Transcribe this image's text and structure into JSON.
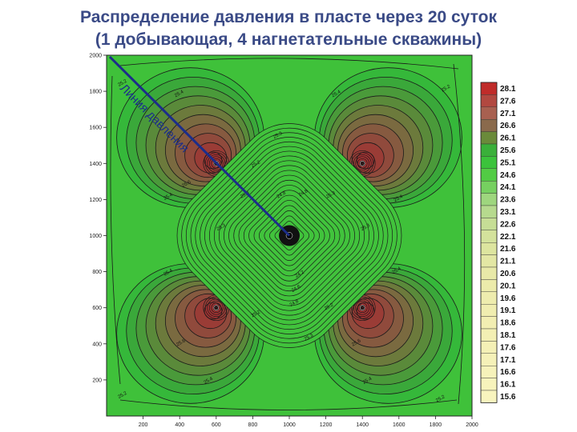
{
  "title_line1": "Распределение давления в пласте через 20 суток",
  "title_line2": "(1 добывающая, 4 нагнетательные скважины)",
  "annotation": "Линия давления",
  "colors": {
    "title": "#3a4a86",
    "field_green": "#3fc13a",
    "contour": "#1a1a1a",
    "line": "#1c2d8a"
  },
  "chart_data": {
    "type": "heatmap",
    "title": "",
    "xlabel": "",
    "ylabel": "",
    "xlim": [
      0,
      2000
    ],
    "ylim": [
      0,
      2000
    ],
    "x_ticks": [
      "200",
      "400",
      "600",
      "800",
      "1000",
      "1200",
      "1400",
      "1600",
      "1800",
      "2000"
    ],
    "y_ticks": [
      "200",
      "400",
      "600",
      "800",
      "1000",
      "1200",
      "1400",
      "1600",
      "1800",
      "2000"
    ],
    "wells": [
      {
        "type": "production",
        "x": 1000,
        "y": 1000
      },
      {
        "type": "injection",
        "x": 600,
        "y": 1400
      },
      {
        "type": "injection",
        "x": 1400,
        "y": 1400
      },
      {
        "type": "injection",
        "x": 600,
        "y": 600
      },
      {
        "type": "injection",
        "x": 1400,
        "y": 600
      }
    ],
    "pressure_line": {
      "from": [
        0,
        2000
      ],
      "to": [
        1000,
        1000
      ]
    },
    "contour_labels": [
      {
        "text": "25.2",
        "x": 90,
        "y": 1840
      },
      {
        "text": "25.2",
        "x": 1860,
        "y": 1810
      },
      {
        "text": "25.2",
        "x": 90,
        "y": 110
      },
      {
        "text": "25.2",
        "x": 1830,
        "y": 90
      },
      {
        "text": "25.4",
        "x": 400,
        "y": 1780
      },
      {
        "text": "25.4",
        "x": 1260,
        "y": 1780
      },
      {
        "text": "25.4",
        "x": 340,
        "y": 1210
      },
      {
        "text": "25.4",
        "x": 1600,
        "y": 1200
      },
      {
        "text": "25.4",
        "x": 340,
        "y": 790
      },
      {
        "text": "25.4",
        "x": 1590,
        "y": 800
      },
      {
        "text": "25.4",
        "x": 560,
        "y": 190
      },
      {
        "text": "25.4",
        "x": 1430,
        "y": 190
      },
      {
        "text": "25.3",
        "x": 940,
        "y": 1550
      },
      {
        "text": "25.3",
        "x": 1110,
        "y": 430
      },
      {
        "text": "25.3",
        "x": 630,
        "y": 1040
      },
      {
        "text": "25.3",
        "x": 1420,
        "y": 1040
      },
      {
        "text": "25.6",
        "x": 440,
        "y": 1280
      },
      {
        "text": "25.6",
        "x": 410,
        "y": 400
      },
      {
        "text": "25.6",
        "x": 1370,
        "y": 400
      },
      {
        "text": "25.2",
        "x": 820,
        "y": 1390
      },
      {
        "text": "25.2",
        "x": 1220,
        "y": 600
      },
      {
        "text": "24.8",
        "x": 960,
        "y": 1220
      },
      {
        "text": "24.8",
        "x": 1080,
        "y": 1230
      },
      {
        "text": "24.2",
        "x": 1060,
        "y": 780
      },
      {
        "text": "24.6",
        "x": 1040,
        "y": 700
      },
      {
        "text": "24.8",
        "x": 1030,
        "y": 620
      },
      {
        "text": "25.3",
        "x": 760,
        "y": 1220
      },
      {
        "text": "25.3",
        "x": 1230,
        "y": 1220
      },
      {
        "text": "25.2",
        "x": 820,
        "y": 560
      }
    ],
    "legend_scale": {
      "labels": [
        "28.1",
        "27.6",
        "27.1",
        "26.6",
        "26.1",
        "25.6",
        "25.1",
        "24.6",
        "24.1",
        "23.6",
        "23.1",
        "22.6",
        "22.1",
        "21.6",
        "21.1",
        "20.6",
        "20.1",
        "19.6",
        "19.1",
        "18.6",
        "18.1",
        "17.6",
        "17.1",
        "16.6",
        "16.1",
        "15.6"
      ],
      "colors": [
        "#c02c2a",
        "#b24840",
        "#a86050",
        "#8a6a4c",
        "#6a8a3a",
        "#3ab03a",
        "#3bc33b",
        "#52cc44",
        "#76d060",
        "#9ed67e",
        "#b6da8e",
        "#c6de96",
        "#d4e29c",
        "#dde59f",
        "#e3e7a4",
        "#e8e9a8",
        "#ecebab",
        "#eeecae",
        "#f0edb0",
        "#f2eeb2",
        "#f3efb4",
        "#f4f0b6",
        "#f5f1b8",
        "#f6f2ba",
        "#f7f3bc",
        "#f8f4be"
      ]
    }
  }
}
